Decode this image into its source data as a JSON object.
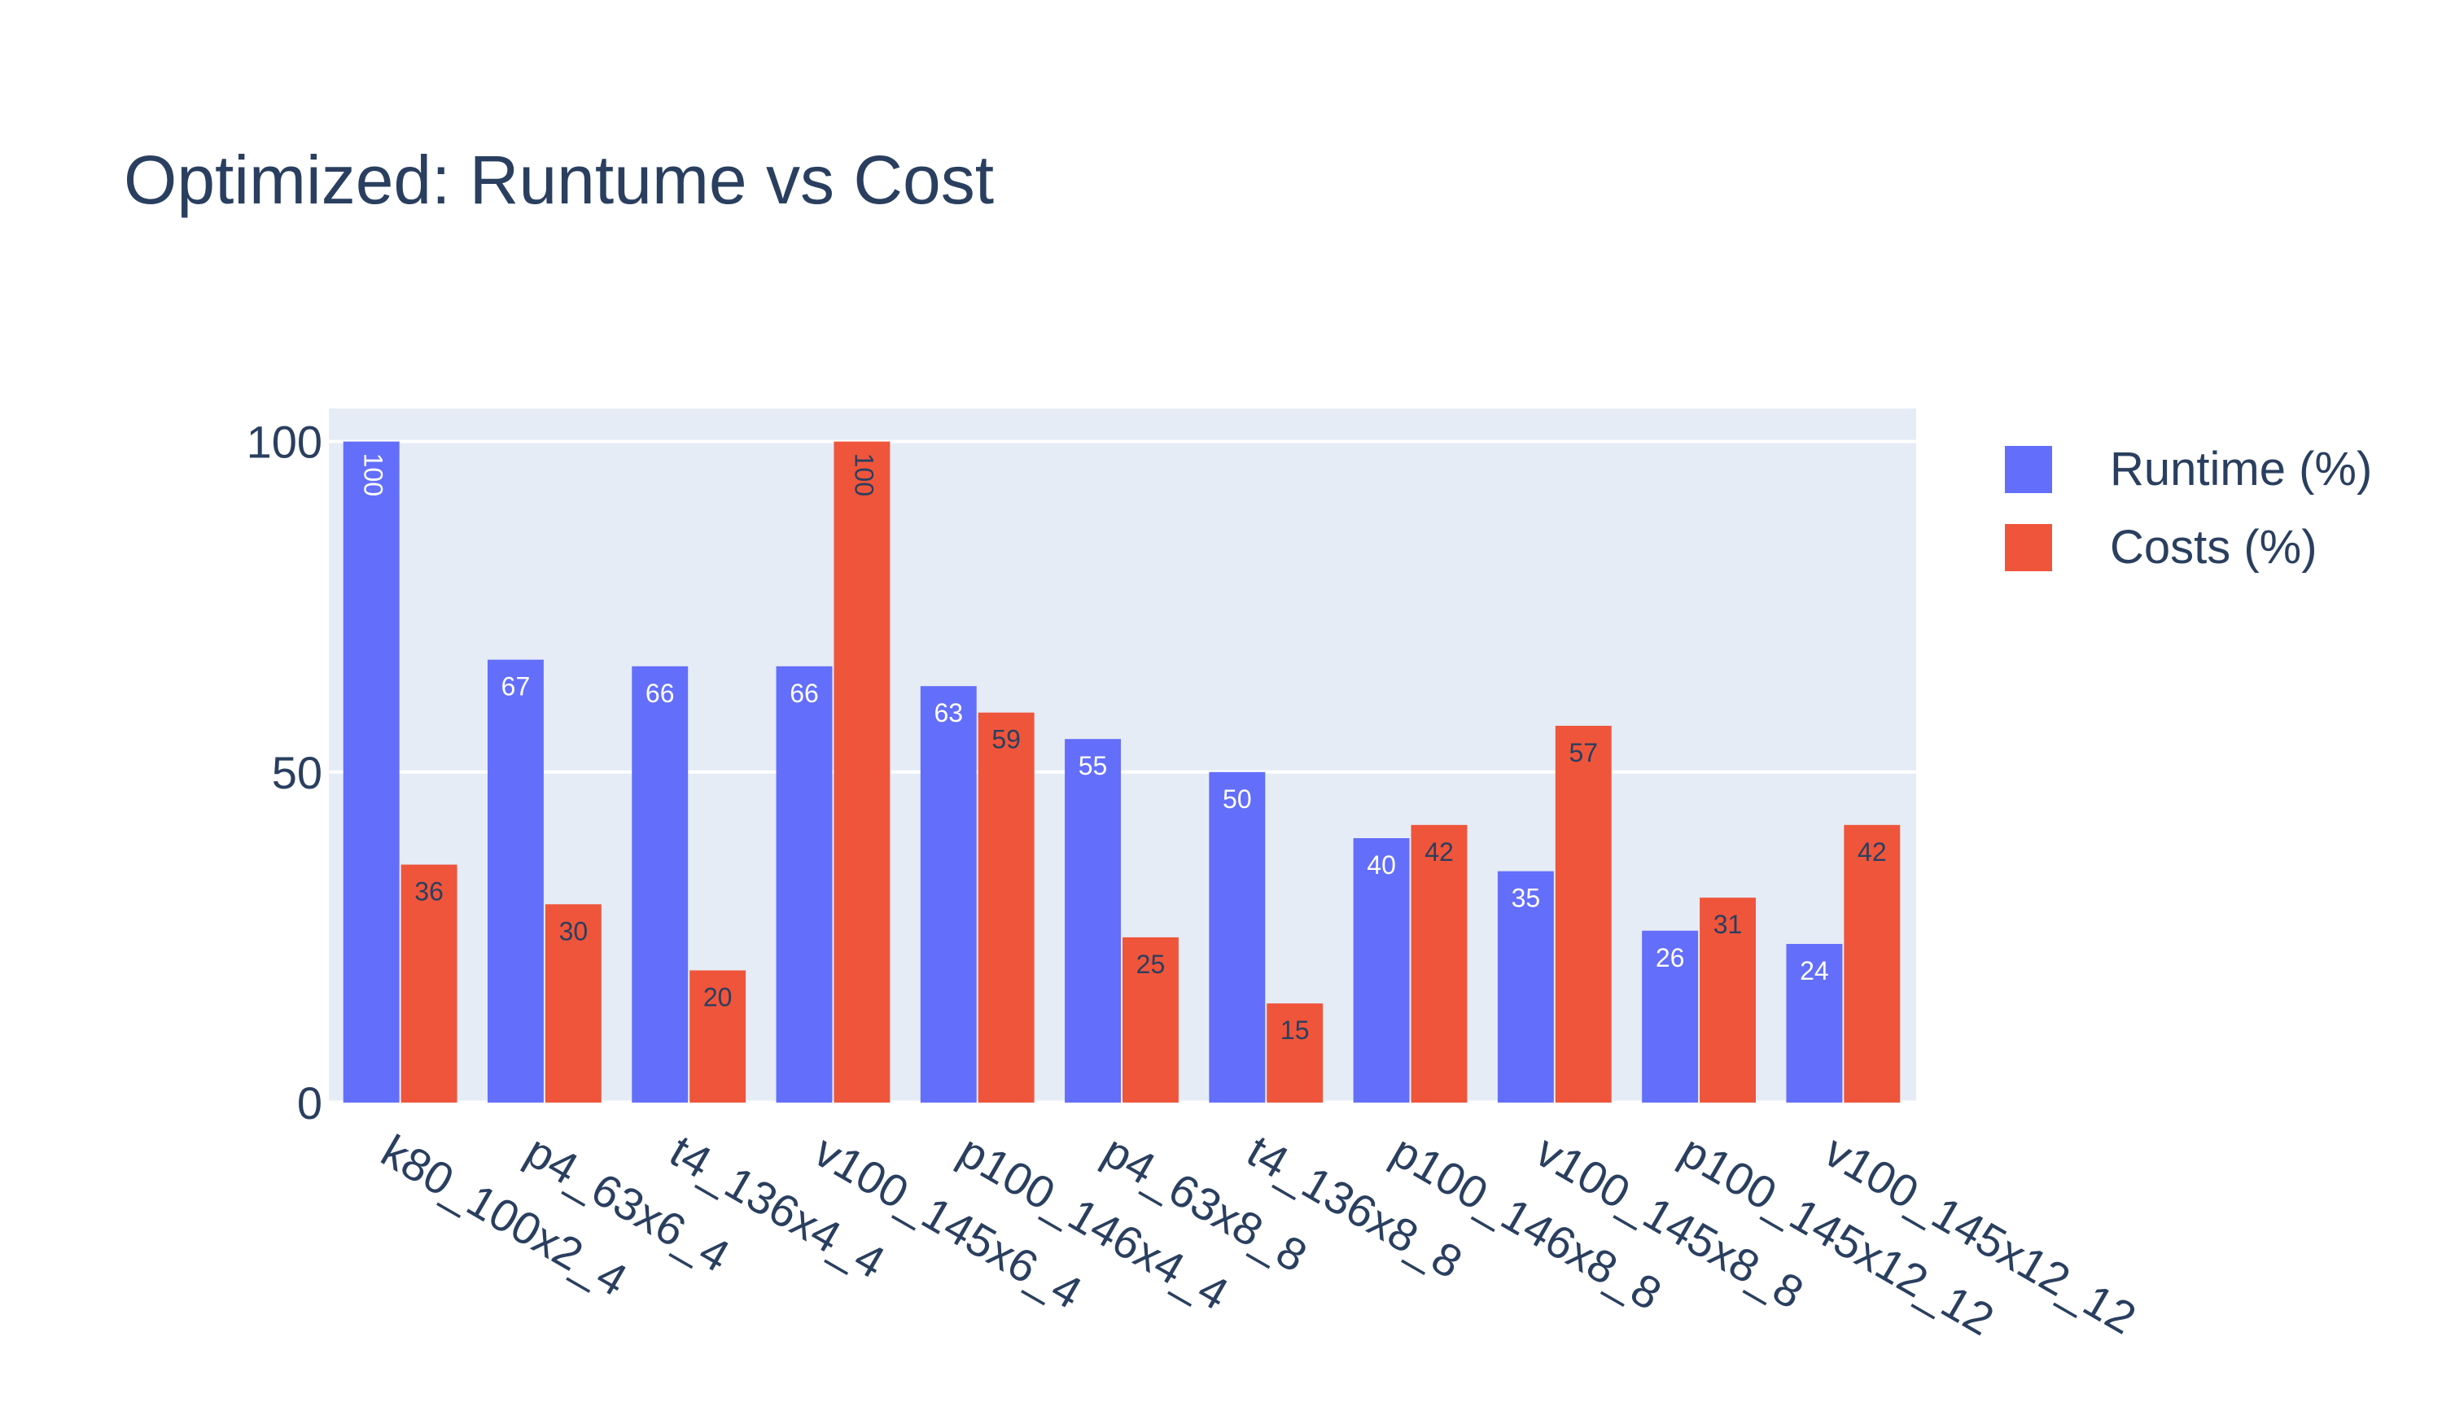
{
  "chart_data": {
    "type": "bar",
    "title": "Optimized: Runtume vs Cost",
    "xlabel": "",
    "ylabel": "",
    "categories": [
      "k80_100x2_4",
      "p4_63x6_4",
      "t4_136x4_4",
      "v100_145x6_4",
      "p100_146x4_4",
      "p4_63x8_8",
      "t4_136x8_8",
      "p100_146x8_8",
      "v100_145x8_8",
      "p100_145x12_12",
      "v100_145x12_12"
    ],
    "series": [
      {
        "name": "Runtime (%)",
        "color": "#636efa",
        "label_color": "#ffffff",
        "values": [
          100,
          67,
          66,
          66,
          63,
          55,
          50,
          40,
          35,
          26,
          24
        ]
      },
      {
        "name": "Costs (%)",
        "color": "#ef553b",
        "label_color": "#2a3f5f",
        "values": [
          36,
          30,
          20,
          100,
          59,
          25,
          15,
          42,
          57,
          31,
          42
        ]
      }
    ],
    "ylim": [
      0,
      105
    ],
    "yticks": [
      0,
      50,
      100
    ],
    "grid": true,
    "legend_position": "top-right",
    "plot_background": "#e5ecf6"
  }
}
